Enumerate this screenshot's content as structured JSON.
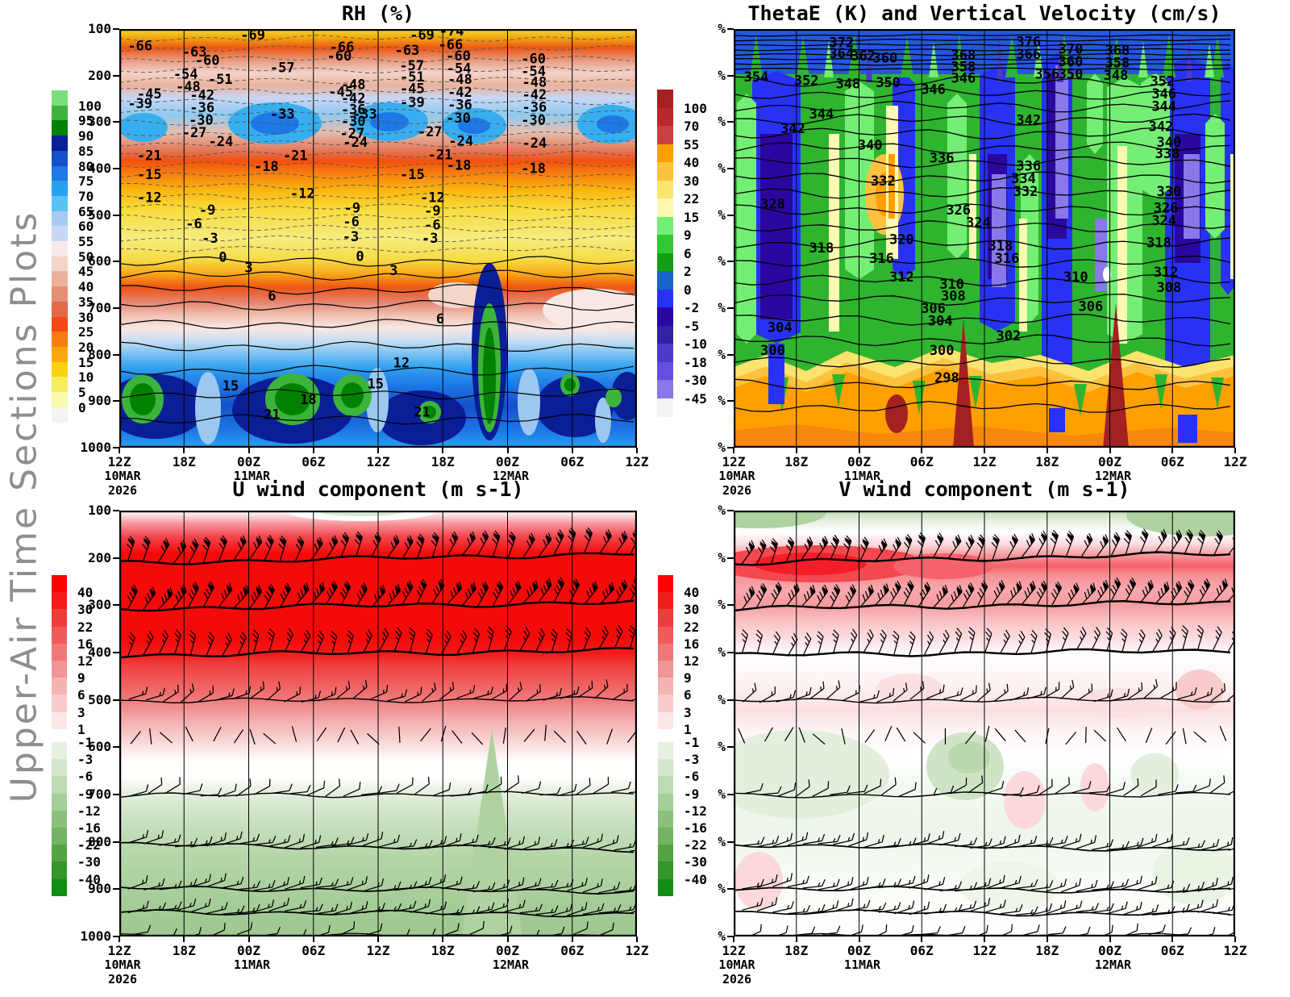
{
  "side_label": "Upper-Air Time Sections Plots",
  "time_axis": {
    "ticks": [
      "12Z",
      "18Z",
      "00Z",
      "06Z",
      "12Z",
      "18Z",
      "00Z",
      "06Z",
      "12Z"
    ],
    "dates": [
      {
        "tick": 0,
        "lines": [
          "10MAR",
          "2026"
        ]
      },
      {
        "tick": 2,
        "lines": [
          "11MAR"
        ]
      },
      {
        "tick": 6,
        "lines": [
          "12MAR"
        ]
      }
    ]
  },
  "pressure_axis": {
    "ticks": [
      "100",
      "200",
      "300",
      "400",
      "500",
      "600",
      "700",
      "800",
      "900",
      "1000"
    ]
  },
  "percent_axis": {
    "symbol": "%",
    "count": 10
  },
  "chart_data": [
    {
      "id": "rh",
      "type": "heatmap",
      "title": "RH (%)",
      "y_axis": "pressure ticks 100-1000",
      "x_axis": "time 12Z 10MAR 2026 to 12Z, 6-hourly",
      "colorbar": {
        "labels": [
          "100",
          "95",
          "90",
          "85",
          "80",
          "75",
          "70",
          "65",
          "60",
          "55",
          "50",
          "45",
          "40",
          "35",
          "30",
          "25",
          "20",
          "15",
          "10",
          "5",
          "0"
        ],
        "colors": [
          "#7CDE7C",
          "#3CB43C",
          "#008200",
          "#0A1E96",
          "#1450C8",
          "#1E78E6",
          "#28A0F0",
          "#5AC3F5",
          "#A5CCF0",
          "#C8D7F4",
          "#F8E8E8",
          "#F3D5C9",
          "#EBB29B",
          "#E58F74",
          "#E06A4B",
          "#F54814",
          "#F87D0F",
          "#FAA60F",
          "#FAD20F",
          "#F5EE5F",
          "#FAF9AC",
          "#F4F4F4"
        ]
      },
      "contour_labels": [
        [
          "-66",
          0.04,
          0.038
        ],
        [
          "-69",
          0.258,
          0.012
        ],
        [
          "-63",
          0.145,
          0.052
        ],
        [
          "-60",
          0.17,
          0.072
        ],
        [
          "-57",
          0.315,
          0.09
        ],
        [
          "-66",
          0.43,
          0.04
        ],
        [
          "-60",
          0.425,
          0.062
        ],
        [
          "-54",
          0.128,
          0.105
        ],
        [
          "-51",
          0.195,
          0.118
        ],
        [
          "-48",
          0.133,
          0.135
        ],
        [
          "-45",
          0.058,
          0.152
        ],
        [
          "-42",
          0.16,
          0.155
        ],
        [
          "-39",
          0.04,
          0.175
        ],
        [
          "-36",
          0.16,
          0.185
        ],
        [
          "-33",
          0.315,
          0.2
        ],
        [
          "-30",
          0.158,
          0.215
        ],
        [
          "-27",
          0.145,
          0.245
        ],
        [
          "-24",
          0.196,
          0.266
        ],
        [
          "-21",
          0.058,
          0.3
        ],
        [
          "-48",
          0.452,
          0.13
        ],
        [
          "-45",
          0.428,
          0.147
        ],
        [
          "-42",
          0.452,
          0.163
        ],
        [
          "-36",
          0.452,
          0.19
        ],
        [
          "-33",
          0.474,
          0.2
        ],
        [
          "-30",
          0.452,
          0.218
        ],
        [
          "-27",
          0.45,
          0.247
        ],
        [
          "-24",
          0.456,
          0.268
        ],
        [
          "-21",
          0.34,
          0.3
        ],
        [
          "-18",
          0.284,
          0.326
        ],
        [
          "-15",
          0.058,
          0.345
        ],
        [
          "-12",
          0.058,
          0.4
        ],
        [
          "-12",
          0.354,
          0.39
        ],
        [
          "-9",
          0.17,
          0.43
        ],
        [
          "-9",
          0.45,
          0.425
        ],
        [
          "-6",
          0.144,
          0.462
        ],
        [
          "-6",
          0.448,
          0.458
        ],
        [
          "-3",
          0.175,
          0.497
        ],
        [
          "-3",
          0.447,
          0.493
        ],
        [
          "0",
          0.2,
          0.542
        ],
        [
          "0",
          0.465,
          0.54
        ],
        [
          "3",
          0.25,
          0.567
        ],
        [
          "3",
          0.53,
          0.574
        ],
        [
          "-69",
          0.585,
          0.012
        ],
        [
          "-74",
          0.642,
          0.002
        ],
        [
          "-66",
          0.64,
          0.035
        ],
        [
          "-63",
          0.556,
          0.048
        ],
        [
          "-60",
          0.655,
          0.062
        ],
        [
          "-57",
          0.565,
          0.085
        ],
        [
          "-54",
          0.656,
          0.092
        ],
        [
          "-51",
          0.566,
          0.112
        ],
        [
          "-48",
          0.658,
          0.118
        ],
        [
          "-45",
          0.566,
          0.14
        ],
        [
          "-42",
          0.658,
          0.148
        ],
        [
          "-39",
          0.566,
          0.172
        ],
        [
          "-36",
          0.658,
          0.178
        ],
        [
          "-30",
          0.655,
          0.21
        ],
        [
          "-27",
          0.6,
          0.243
        ],
        [
          "-24",
          0.66,
          0.265
        ],
        [
          "-21",
          0.62,
          0.298
        ],
        [
          "-18",
          0.656,
          0.323
        ],
        [
          "-15",
          0.566,
          0.345
        ],
        [
          "-12",
          0.605,
          0.4
        ],
        [
          "-9",
          0.605,
          0.432
        ],
        [
          "-6",
          0.605,
          0.465
        ],
        [
          "-3",
          0.6,
          0.497
        ],
        [
          "-60",
          0.8,
          0.068
        ],
        [
          "-54",
          0.8,
          0.098
        ],
        [
          "-48",
          0.802,
          0.124
        ],
        [
          "-42",
          0.802,
          0.154
        ],
        [
          "-36",
          0.802,
          0.184
        ],
        [
          "-30",
          0.8,
          0.215
        ],
        [
          "-24",
          0.802,
          0.27
        ],
        [
          "-18",
          0.8,
          0.33
        ],
        [
          "6",
          0.295,
          0.635
        ],
        [
          "6",
          0.62,
          0.69
        ],
        [
          "12",
          0.545,
          0.795
        ],
        [
          "15",
          0.215,
          0.85
        ],
        [
          "15",
          0.495,
          0.845
        ],
        [
          "18",
          0.365,
          0.882
        ],
        [
          "21",
          0.295,
          0.918
        ],
        [
          "21",
          0.585,
          0.912
        ]
      ]
    },
    {
      "id": "thetae",
      "type": "heatmap",
      "title": "ThetaE (K) and Vertical Velocity (cm/s)",
      "y_axis": "percent symbols at each tick",
      "x_axis": "time 12Z 10MAR 2026 to 12Z, 6-hourly",
      "colorbar": {
        "labels": [
          "100",
          "70",
          "55",
          "40",
          "30",
          "22",
          "15",
          "9",
          "6",
          "2",
          "0",
          "-2",
          "-5",
          "-10",
          "-18",
          "-30",
          "-45"
        ],
        "colors": [
          "#A52121",
          "#B52A2A",
          "#C94040",
          "#FFA000",
          "#FCC23E",
          "#FAE36E",
          "#FCF9B4",
          "#74EE74",
          "#32C832",
          "#12A012",
          "#1664C8",
          "#2832F5",
          "#2A08A0",
          "#3222A0",
          "#4A3CC8",
          "#6450DC",
          "#8878E8",
          "#F4F4F4"
        ]
      },
      "contour_labels": [
        [
          "372",
          0.215,
          0.03
        ],
        [
          "364",
          0.215,
          0.056
        ],
        [
          "362",
          0.258,
          0.062
        ],
        [
          "360",
          0.302,
          0.066
        ],
        [
          "354",
          0.045,
          0.112
        ],
        [
          "352",
          0.145,
          0.12
        ],
        [
          "348",
          0.228,
          0.128
        ],
        [
          "350",
          0.308,
          0.125
        ],
        [
          "346",
          0.398,
          0.142
        ],
        [
          "368",
          0.458,
          0.06
        ],
        [
          "358",
          0.458,
          0.088
        ],
        [
          "346",
          0.458,
          0.115
        ],
        [
          "376",
          0.588,
          0.028
        ],
        [
          "366",
          0.588,
          0.058
        ],
        [
          "356",
          0.625,
          0.105
        ],
        [
          "370",
          0.672,
          0.045
        ],
        [
          "360",
          0.672,
          0.075
        ],
        [
          "350",
          0.672,
          0.105
        ],
        [
          "368",
          0.765,
          0.048
        ],
        [
          "358",
          0.765,
          0.078
        ],
        [
          "348",
          0.762,
          0.108
        ],
        [
          "352",
          0.855,
          0.122
        ],
        [
          "346",
          0.858,
          0.152
        ],
        [
          "344",
          0.858,
          0.182
        ],
        [
          "344",
          0.175,
          0.2
        ],
        [
          "342",
          0.118,
          0.235
        ],
        [
          "340",
          0.272,
          0.275
        ],
        [
          "342",
          0.588,
          0.215
        ],
        [
          "342",
          0.852,
          0.23
        ],
        [
          "340",
          0.868,
          0.268
        ],
        [
          "338",
          0.865,
          0.295
        ],
        [
          "336",
          0.415,
          0.305
        ],
        [
          "332",
          0.298,
          0.36
        ],
        [
          "336",
          0.588,
          0.325
        ],
        [
          "334",
          0.578,
          0.355
        ],
        [
          "332",
          0.582,
          0.385
        ],
        [
          "330",
          0.868,
          0.385
        ],
        [
          "328",
          0.078,
          0.415
        ],
        [
          "326",
          0.448,
          0.43
        ],
        [
          "324",
          0.488,
          0.46
        ],
        [
          "326",
          0.862,
          0.425
        ],
        [
          "324",
          0.858,
          0.455
        ],
        [
          "318",
          0.175,
          0.52
        ],
        [
          "320",
          0.335,
          0.5
        ],
        [
          "318",
          0.532,
          0.515
        ],
        [
          "316",
          0.295,
          0.545
        ],
        [
          "316",
          0.545,
          0.545
        ],
        [
          "318",
          0.848,
          0.508
        ],
        [
          "312",
          0.335,
          0.59
        ],
        [
          "312",
          0.862,
          0.578
        ],
        [
          "310",
          0.435,
          0.607
        ],
        [
          "308",
          0.438,
          0.635
        ],
        [
          "310",
          0.682,
          0.59
        ],
        [
          "308",
          0.868,
          0.615
        ],
        [
          "306",
          0.398,
          0.665
        ],
        [
          "304",
          0.412,
          0.695
        ],
        [
          "306",
          0.712,
          0.66
        ],
        [
          "302",
          0.548,
          0.73
        ],
        [
          "304",
          0.092,
          0.71
        ],
        [
          "300",
          0.078,
          0.765
        ],
        [
          "300",
          0.415,
          0.765
        ],
        [
          "298",
          0.425,
          0.83
        ]
      ]
    },
    {
      "id": "u",
      "type": "heatmap",
      "title": "U wind component (m s-1)",
      "y_axis": "pressure ticks 100-1000",
      "x_axis": "time 12Z 10MAR 2026 to 12Z, 6-hourly",
      "has_wind_barbs": true,
      "colorbar_positive": {
        "labels": [
          "40",
          "30",
          "22",
          "16",
          "12",
          "9",
          "6",
          "3",
          "1"
        ],
        "colors": [
          "#FF0000",
          "#F41A1A",
          "#F03C3C",
          "#F05A5A",
          "#F07878",
          "#F09696",
          "#F5B4B4",
          "#F8CCCC",
          "#FCE6E6"
        ]
      },
      "colorbar_negative": {
        "labels": [
          "-1",
          "-3",
          "-6",
          "-9",
          "-12",
          "-16",
          "-22",
          "-30",
          "-40"
        ],
        "colors": [
          "#E6F0E1",
          "#D4E6CC",
          "#BEDCB4",
          "#A5CE99",
          "#8CC07E",
          "#74B264",
          "#55A344",
          "#329628",
          "#128C12"
        ]
      },
      "contour_labels": []
    },
    {
      "id": "v",
      "type": "heatmap",
      "title": "V wind component (m s-1)",
      "y_axis": "percent symbols at each tick",
      "x_axis": "time 12Z 10MAR 2026 to 12Z, 6-hourly",
      "has_wind_barbs": true,
      "colorbar_positive": {
        "labels": [
          "40",
          "30",
          "22",
          "16",
          "12",
          "9",
          "6",
          "3",
          "1"
        ],
        "colors": [
          "#FF0000",
          "#F41A1A",
          "#F03C3C",
          "#F05A5A",
          "#F07878",
          "#F09696",
          "#F5B4B4",
          "#F8CCCC",
          "#FCE6E6"
        ]
      },
      "colorbar_negative": {
        "labels": [
          "-1",
          "-3",
          "-6",
          "-9",
          "-12",
          "-16",
          "-22",
          "-30",
          "-40"
        ],
        "colors": [
          "#E6F0E1",
          "#D4E6CC",
          "#BEDCB4",
          "#A5CE99",
          "#8CC07E",
          "#74B264",
          "#55A344",
          "#329628",
          "#128C12"
        ]
      },
      "contour_labels": []
    }
  ]
}
